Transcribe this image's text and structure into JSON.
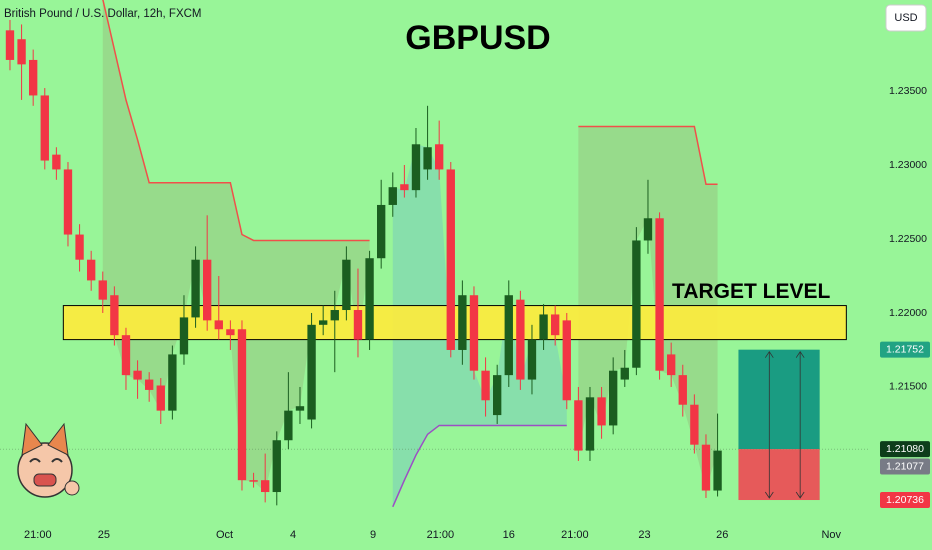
{
  "header": {
    "symbol": "British Pound / U.S. Dollar, 12h, FXCM",
    "currency": "USD"
  },
  "chart_data": {
    "type": "candlestick",
    "title": "GBPUSD",
    "up_color": "#1b5e20",
    "down_color": "#f23645",
    "open": [
      1.2391,
      1.2385,
      1.2371,
      1.2347,
      1.2307,
      1.2297,
      1.2253,
      1.2236,
      1.2222,
      1.2212,
      1.2185,
      1.2161,
      1.2155,
      1.2151,
      1.2134,
      1.2172,
      1.2197,
      1.2236,
      1.2195,
      1.2189,
      1.2189,
      1.2087,
      1.2087,
      1.2079,
      1.2114,
      1.2134,
      1.2128,
      1.2192,
      1.2195,
      1.2202,
      1.2202,
      1.2182,
      1.2237,
      1.2273,
      1.2287,
      1.2283,
      1.2297,
      1.2314,
      1.2297,
      1.2175,
      1.2212,
      1.2161,
      1.2131,
      1.2158,
      1.2209,
      1.2155,
      1.2182,
      1.2199,
      1.2195,
      1.2141,
      1.2107,
      1.2143,
      1.2124,
      1.2155,
      1.2163,
      1.2249,
      1.2264,
      1.2172,
      1.2158,
      1.2138,
      1.2111,
      1.208
    ],
    "high": [
      1.2398,
      1.2395,
      1.2378,
      1.2352,
      1.2312,
      1.2302,
      1.226,
      1.2242,
      1.2228,
      1.2218,
      1.219,
      1.2168,
      1.216,
      1.2156,
      1.2178,
      1.2212,
      1.2245,
      1.2266,
      1.2225,
      1.2195,
      1.2195,
      1.2092,
      1.2105,
      1.212,
      1.216,
      1.215,
      1.22,
      1.2205,
      1.2215,
      1.2245,
      1.223,
      1.2242,
      1.229,
      1.2295,
      1.23,
      1.2325,
      1.234,
      1.233,
      1.2302,
      1.2222,
      1.2218,
      1.217,
      1.2165,
      1.2222,
      1.2215,
      1.2192,
      1.2206,
      1.2205,
      1.22,
      1.215,
      1.215,
      1.215,
      1.217,
      1.2175,
      1.2258,
      1.229,
      1.2268,
      1.218,
      1.2165,
      1.2145,
      1.2118,
      1.2132
    ],
    "low": [
      1.2364,
      1.2344,
      1.234,
      1.2297,
      1.229,
      1.2245,
      1.2228,
      1.2215,
      1.22,
      1.2178,
      1.2148,
      1.2142,
      1.214,
      1.2125,
      1.2128,
      1.2165,
      1.219,
      1.2188,
      1.2182,
      1.2175,
      1.208,
      1.2082,
      1.2072,
      1.207,
      1.2108,
      1.2125,
      1.2122,
      1.2185,
      1.216,
      1.2195,
      1.217,
      1.2175,
      1.223,
      1.2265,
      1.2278,
      1.2278,
      1.229,
      1.229,
      1.217,
      1.2165,
      1.2155,
      1.213,
      1.2125,
      1.215,
      1.2148,
      1.2145,
      1.2175,
      1.2178,
      1.2135,
      1.21,
      1.21,
      1.2115,
      1.2118,
      1.215,
      1.2158,
      1.224,
      1.2155,
      1.215,
      1.213,
      1.2105,
      1.2075,
      1.2076
    ],
    "close": [
      1.2371,
      1.2368,
      1.2347,
      1.2303,
      1.2297,
      1.2253,
      1.2236,
      1.2222,
      1.2209,
      1.2185,
      1.2158,
      1.2155,
      1.2148,
      1.2134,
      1.2172,
      1.2197,
      1.2236,
      1.2195,
      1.2189,
      1.2185,
      1.2087,
      1.2086,
      1.2079,
      1.2114,
      1.2134,
      1.2137,
      1.2192,
      1.2195,
      1.2202,
      1.2236,
      1.2182,
      1.2237,
      1.2273,
      1.2285,
      1.2283,
      1.2314,
      1.2312,
      1.2297,
      1.2175,
      1.2212,
      1.2161,
      1.2141,
      1.2158,
      1.2212,
      1.2155,
      1.2182,
      1.2199,
      1.2185,
      1.2141,
      1.2107,
      1.2143,
      1.2124,
      1.2161,
      1.2163,
      1.2249,
      1.2264,
      1.2161,
      1.2158,
      1.2138,
      1.2111,
      1.208,
      1.2107
    ],
    "trend": {
      "resistance": {
        "color": "#f0504a",
        "values": [
          null,
          null,
          null,
          null,
          null,
          null,
          null,
          null,
          1.2412,
          1.2378,
          1.2344,
          1.2317,
          1.2288,
          1.2288,
          1.2288,
          1.2288,
          1.2288,
          1.2288,
          1.2288,
          1.2288,
          1.2253,
          1.2249,
          1.2249,
          1.2249,
          1.2249,
          1.2249,
          1.2249,
          1.2249,
          1.2249,
          1.2249,
          1.2249,
          1.2249,
          null,
          null,
          null,
          null,
          null,
          null,
          null,
          null,
          null,
          null,
          null,
          null,
          null,
          null,
          null,
          null,
          null,
          1.2326,
          1.2326,
          1.2326,
          1.2326,
          1.2326,
          1.2326,
          1.2326,
          1.2326,
          1.2326,
          1.2326,
          1.2326,
          1.2287,
          1.2287
        ]
      },
      "support": {
        "color": "#9b4fc4",
        "values": [
          null,
          null,
          null,
          null,
          null,
          null,
          null,
          null,
          null,
          null,
          null,
          null,
          null,
          null,
          null,
          null,
          null,
          null,
          null,
          null,
          null,
          null,
          null,
          null,
          null,
          null,
          null,
          null,
          null,
          null,
          null,
          null,
          null,
          1.2069,
          1.2087,
          1.2104,
          1.2118,
          1.2124,
          1.2124,
          1.2124,
          1.2124,
          1.2124,
          1.2124,
          1.2124,
          1.2124,
          1.2124,
          1.2124,
          1.2124,
          1.2124,
          null,
          null,
          null,
          null,
          null,
          null,
          null,
          null,
          null,
          null,
          null,
          null,
          null
        ]
      }
    },
    "target_zone": {
      "label": "TARGET LEVEL",
      "low": 1.2182,
      "high": 1.2205,
      "x": [
        4.6,
        72.1
      ],
      "color": "#ffeb3b"
    },
    "position": {
      "x": [
        62.8,
        69.8
      ],
      "target": 1.21752,
      "entry": 1.2108,
      "stop": 1.20736,
      "profit_color": "#1a9c82",
      "loss_color": "#e65a5a"
    },
    "price_tags": [
      {
        "value": 1.21752,
        "label": "1.21752",
        "color": "#22a383"
      },
      {
        "value": 1.2108,
        "label": "1.21080",
        "color": "#0d3d1a"
      },
      {
        "value": 1.21077,
        "label": "1.21077",
        "color": "#787b86"
      },
      {
        "value": 1.20736,
        "label": "1.20736",
        "color": "#f23645"
      }
    ],
    "xlim": [
      -0.86,
      74.14
    ],
    "xticks": [
      {
        "value": 2.4,
        "label": "21:00"
      },
      {
        "value": 8.1,
        "label": "25"
      },
      {
        "value": 18.5,
        "label": "Oct"
      },
      {
        "value": 24.4,
        "label": "4"
      },
      {
        "value": 31.3,
        "label": "9"
      },
      {
        "value": 37.1,
        "label": "21:00"
      },
      {
        "value": 43.0,
        "label": "16"
      },
      {
        "value": 48.7,
        "label": "21:00"
      },
      {
        "value": 54.7,
        "label": "23"
      },
      {
        "value": 61.4,
        "label": "26"
      },
      {
        "value": 70.8,
        "label": "Nov"
      }
    ],
    "ylim": [
      1.20601,
      1.24115
    ],
    "yticks": [
      {
        "value": 1.215,
        "label": "1.21500"
      },
      {
        "value": 1.22,
        "label": "1.22000"
      },
      {
        "value": 1.225,
        "label": "1.22500"
      },
      {
        "value": 1.23,
        "label": "1.23000"
      },
      {
        "value": 1.235,
        "label": "1.23500"
      }
    ]
  }
}
